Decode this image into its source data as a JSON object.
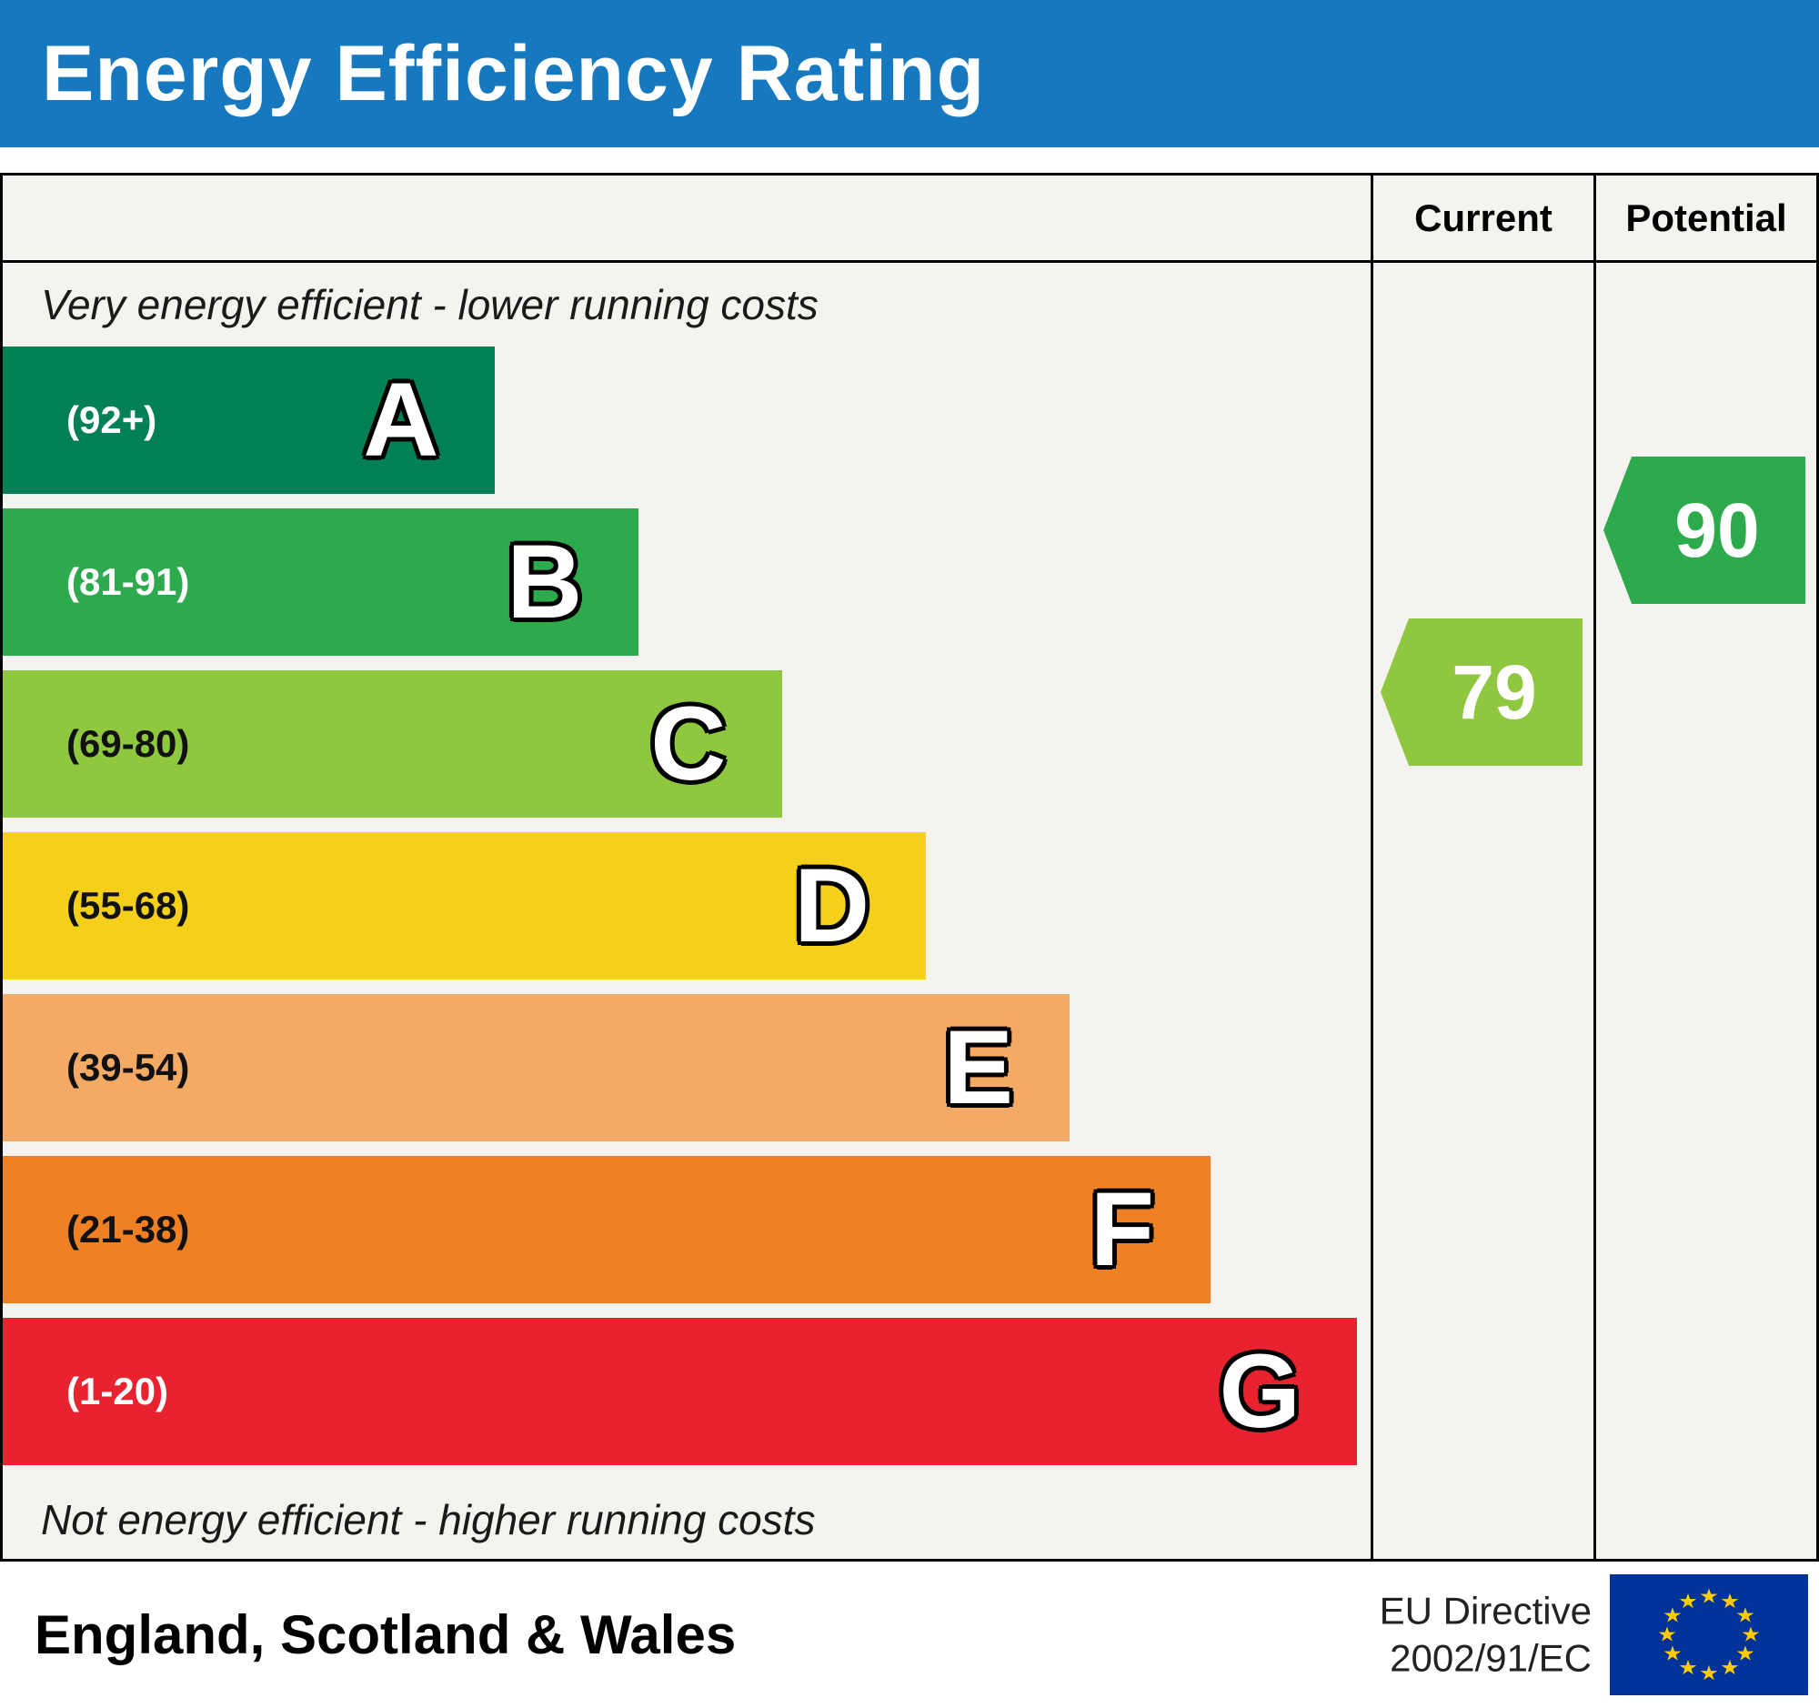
{
  "title": "Energy Efficiency Rating",
  "colors": {
    "header_bg": "#1679c0",
    "table_bg": "#f4f3ef"
  },
  "columns": {
    "current": "Current",
    "potential": "Potential"
  },
  "captions": {
    "top": "Very energy efficient - lower running costs",
    "bottom": "Not energy efficient - higher running costs"
  },
  "bands": [
    {
      "letter": "A",
      "range": "(92+)",
      "color": "#008054",
      "text_color": "#ffffff",
      "width_pct": 36
    },
    {
      "letter": "B",
      "range": "(81-91)",
      "color": "#2eaa4e",
      "text_color": "#ffffff",
      "width_pct": 46.5
    },
    {
      "letter": "C",
      "range": "(69-80)",
      "color": "#8fc73e",
      "text_color": "#111111",
      "width_pct": 57
    },
    {
      "letter": "D",
      "range": "(55-68)",
      "color": "#f4d01b",
      "text_color": "#111111",
      "width_pct": 67.5
    },
    {
      "letter": "E",
      "range": "(39-54)",
      "color": "#f2aa64",
      "text_color": "#111111",
      "width_pct": 78
    },
    {
      "letter": "F",
      "range": "(21-38)",
      "color": "#ef8023",
      "text_color": "#111111",
      "width_pct": 88.3
    },
    {
      "letter": "G",
      "range": "(1-20)",
      "color": "#e8232f",
      "text_color": "#ffffff",
      "width_pct": 99
    }
  ],
  "ratings": {
    "current": {
      "value": "79",
      "color": "#8fc73e",
      "band": "C"
    },
    "potential": {
      "value": "90",
      "color": "#2eaa4e",
      "band": "B"
    }
  },
  "footer": {
    "region": "England, Scotland & Wales",
    "directive_line1": "EU Directive",
    "directive_line2": "2002/91/EC",
    "eu_flag_colors": {
      "field": "#003399",
      "stars": "#ffcc00"
    }
  },
  "chart_data": {
    "type": "bar",
    "title": "Energy Efficiency Rating",
    "categories": [
      "A",
      "B",
      "C",
      "D",
      "E",
      "F",
      "G"
    ],
    "band_ranges": [
      "92+",
      "81-91",
      "69-80",
      "55-68",
      "39-54",
      "21-38",
      "1-20"
    ],
    "bar_lengths_pct": [
      36,
      46.5,
      57,
      67.5,
      78,
      88.3,
      99
    ],
    "band_colors": [
      "#008054",
      "#2eaa4e",
      "#8fc73e",
      "#f4d01b",
      "#f2aa64",
      "#ef8023",
      "#e8232f"
    ],
    "current_rating": 79,
    "current_band": "C",
    "potential_rating": 90,
    "potential_band": "B",
    "annotations": [
      "Very energy efficient - lower running costs",
      "Not energy efficient - higher running costs"
    ],
    "legend_position": "none",
    "region": "England, Scotland & Wales",
    "directive": "EU Directive 2002/91/EC"
  }
}
